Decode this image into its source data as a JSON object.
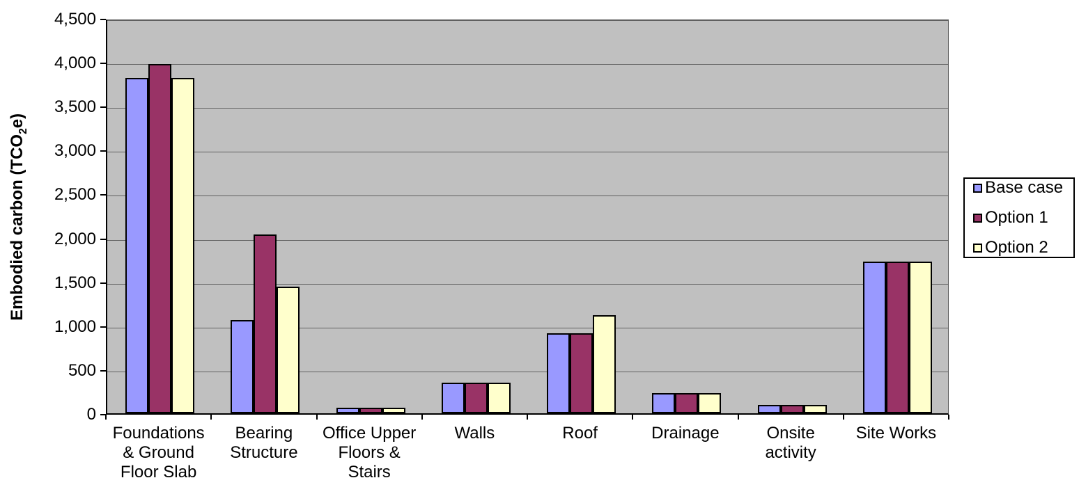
{
  "chart_data": {
    "type": "bar",
    "title": "",
    "ylabel": "Embodied carbon (TCO2e)",
    "ylabel_parts": {
      "pre": "Embodied carbon (TCO",
      "sub": "2",
      "post": "e)"
    },
    "xlabel": "",
    "ylim": [
      0,
      4500
    ],
    "ytick_step": 500,
    "ytick_labels": [
      "0",
      "500",
      "1,000",
      "1,500",
      "2,000",
      "2,500",
      "3,000",
      "3,500",
      "4,000",
      "4,500"
    ],
    "grid": true,
    "plot_bg_color": "#C0C0C0",
    "gridline_color": "#5F5F5F",
    "legend_position": "right",
    "categories": [
      "Foundations\n& Ground\nFloor Slab",
      "Bearing\nStructure",
      "Office Upper\nFloors &\nStairs",
      "Walls",
      "Roof",
      "Drainage",
      "Onsite\nactivity",
      "Site Works"
    ],
    "series": [
      {
        "name": "Base case",
        "color": "#9999FF",
        "values": [
          3820,
          1060,
          60,
          350,
          910,
          230,
          95,
          1730
        ]
      },
      {
        "name": "Option 1",
        "color": "#993366",
        "values": [
          3980,
          2040,
          60,
          350,
          910,
          230,
          95,
          1730
        ]
      },
      {
        "name": "Option 2",
        "color": "#FFFFCC",
        "values": [
          3820,
          1440,
          60,
          350,
          1120,
          230,
          95,
          1730
        ]
      }
    ]
  }
}
